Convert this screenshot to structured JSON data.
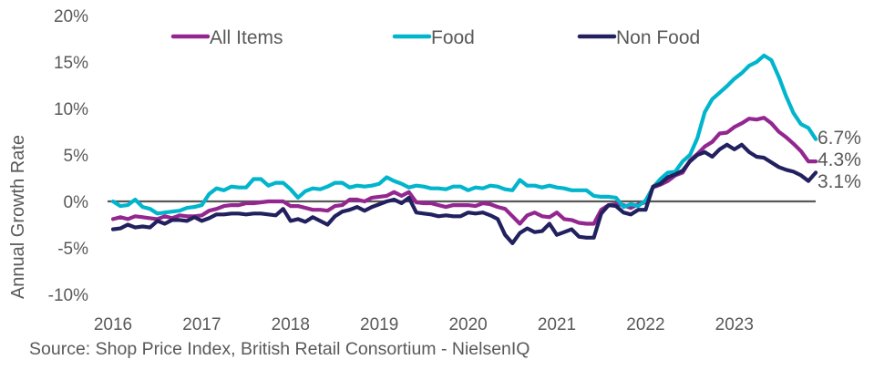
{
  "chart_data": {
    "type": "line",
    "title": "",
    "xlabel": "",
    "ylabel": "Annual Growth Rate",
    "ylim": [
      -10,
      20
    ],
    "yticks": [
      20,
      15,
      10,
      5,
      0,
      -5,
      -10
    ],
    "ytick_labels": [
      "20%",
      "15%",
      "10%",
      "5%",
      "0%",
      "-5%",
      "-10%"
    ],
    "xtick_labels": [
      "2016",
      "2017",
      "2018",
      "2019",
      "2020",
      "2021",
      "2022",
      "2023"
    ],
    "x_start": "2016-01",
    "x_frequency": "monthly",
    "grid": false,
    "zero_line": true,
    "legend_position": "top",
    "series": [
      {
        "name": "All Items",
        "color": "#93278f",
        "end_label": "4.3%",
        "values": [
          -1.9,
          -1.7,
          -1.9,
          -1.6,
          -1.7,
          -1.8,
          -1.9,
          -1.6,
          -1.8,
          -1.5,
          -1.6,
          -1.6,
          -1.5,
          -1.0,
          -0.8,
          -0.5,
          -0.4,
          -0.4,
          -0.2,
          -0.2,
          -0.1,
          0.0,
          0.0,
          0.0,
          -0.5,
          -0.5,
          -0.7,
          -0.9,
          -0.9,
          -1.0,
          -0.5,
          -0.4,
          0.2,
          0.2,
          0.0,
          0.4,
          0.5,
          0.6,
          1.0,
          0.6,
          1.0,
          -0.1,
          -0.2,
          -0.2,
          -0.4,
          -0.6,
          -0.4,
          -0.4,
          -0.4,
          -0.5,
          -0.2,
          -0.3,
          -0.6,
          -0.8,
          -1.6,
          -2.4,
          -1.5,
          -1.2,
          -1.6,
          -1.7,
          -1.2,
          -1.9,
          -2.0,
          -2.3,
          -2.4,
          -2.4,
          -0.9,
          -0.4,
          -0.3,
          -0.4,
          -0.7,
          -0.3,
          -0.1,
          1.5,
          1.8,
          2.2,
          2.8,
          3.1,
          4.4,
          5.1,
          5.9,
          6.4,
          7.3,
          7.4,
          8.0,
          8.4,
          8.9,
          8.8,
          9.0,
          8.4,
          7.5,
          6.9,
          6.2,
          5.4,
          4.3,
          4.3
        ]
      },
      {
        "name": "Food",
        "color": "#00b5cc",
        "end_label": "6.7%",
        "values": [
          0.0,
          -0.5,
          -0.4,
          0.2,
          -0.6,
          -0.8,
          -1.3,
          -1.2,
          -1.1,
          -1.0,
          -0.7,
          -0.6,
          -0.4,
          0.8,
          1.4,
          1.2,
          1.6,
          1.5,
          1.5,
          2.4,
          2.4,
          1.7,
          2.0,
          2.0,
          1.3,
          0.4,
          1.1,
          1.4,
          1.3,
          1.6,
          2.0,
          2.0,
          1.5,
          1.7,
          1.6,
          1.7,
          1.9,
          2.6,
          2.2,
          1.9,
          1.5,
          1.7,
          1.6,
          1.4,
          1.4,
          1.3,
          1.6,
          1.6,
          1.2,
          1.5,
          1.4,
          1.7,
          1.6,
          1.3,
          1.2,
          2.3,
          1.7,
          1.7,
          1.5,
          1.7,
          1.5,
          1.4,
          1.2,
          1.2,
          1.2,
          0.6,
          0.5,
          0.5,
          0.4,
          -0.6,
          -0.3,
          -0.5,
          0.1,
          1.5,
          2.4,
          3.1,
          3.2,
          4.3,
          5.0,
          6.8,
          9.6,
          11.0,
          11.7,
          12.4,
          13.2,
          13.8,
          14.6,
          15.0,
          15.7,
          15.2,
          13.4,
          11.3,
          9.5,
          8.3,
          7.9,
          6.7
        ]
      },
      {
        "name": "Non Food",
        "color": "#22205f",
        "end_label": "3.1%",
        "values": [
          -3.0,
          -2.9,
          -2.5,
          -2.8,
          -2.7,
          -2.8,
          -2.1,
          -2.4,
          -2.0,
          -2.0,
          -2.1,
          -1.7,
          -2.1,
          -1.8,
          -1.4,
          -1.4,
          -1.3,
          -1.3,
          -1.4,
          -1.3,
          -1.3,
          -1.4,
          -1.5,
          -0.8,
          -2.1,
          -1.9,
          -2.2,
          -1.7,
          -2.1,
          -2.5,
          -1.6,
          -1.1,
          -0.9,
          -0.6,
          -1.0,
          -0.6,
          -0.3,
          0.0,
          0.2,
          -0.2,
          0.4,
          -1.2,
          -1.3,
          -1.4,
          -1.6,
          -1.5,
          -1.6,
          -1.6,
          -1.2,
          -1.3,
          -1.2,
          -1.5,
          -1.9,
          -3.6,
          -4.5,
          -3.4,
          -2.9,
          -3.3,
          -3.2,
          -2.4,
          -3.6,
          -3.3,
          -3.0,
          -3.8,
          -3.9,
          -3.9,
          -1.3,
          -0.4,
          -0.5,
          -1.2,
          -1.4,
          -0.9,
          -0.9,
          1.6,
          1.9,
          2.6,
          2.9,
          3.3,
          4.3,
          5.0,
          5.3,
          4.8,
          5.6,
          6.1,
          5.6,
          6.1,
          5.3,
          4.8,
          4.7,
          4.2,
          3.7,
          3.4,
          3.2,
          2.8,
          2.2,
          3.1
        ]
      }
    ]
  },
  "source_text": "Source: Shop Price Index, British Retail Consortium - NielsenIQ"
}
